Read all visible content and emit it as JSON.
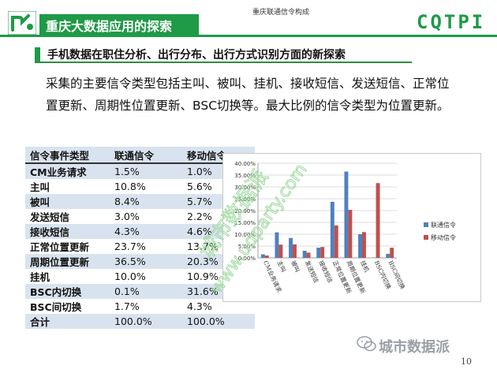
{
  "header": {
    "title": "重庆大数据应用的探索",
    "caption": "重庆联通信令构成",
    "brand": "CQTPI",
    "colors": {
      "accent": "#1f9a47"
    }
  },
  "subtitle": "手机数据在职住分析、出行分布、出行方式识别方面的新探索",
  "paragraph": "采集的主要信令类型包括主叫、被叫、挂机、接收短信、发送短信、正常位置更新、周期性位置更新、BSC切换等。最大比例的信令类型为位置更新。",
  "table": {
    "headers": [
      "信令事件类型",
      "联通信令",
      "移动信令"
    ],
    "rows": [
      [
        "CM业务请求",
        "1.5%",
        "1.0%"
      ],
      [
        "主叫",
        "10.8%",
        "5.6%"
      ],
      [
        "被叫",
        "8.4%",
        "5.7%"
      ],
      [
        "发送短信",
        "3.0%",
        "2.2%"
      ],
      [
        "接收短信",
        "4.3%",
        "4.6%"
      ],
      [
        "正常位置更新",
        "23.7%",
        "13.7%"
      ],
      [
        "周期位置更新",
        "36.5%",
        "20.3%"
      ],
      [
        "挂机",
        "10.0%",
        "10.9%"
      ],
      [
        "BSC内切换",
        "0.1%",
        "31.6%"
      ],
      [
        "BSC间切换",
        "1.7%",
        "4.3%"
      ],
      [
        "合计",
        "100.0%",
        "100.0%"
      ]
    ]
  },
  "chart_data": {
    "type": "bar",
    "categories": [
      "CM业务请求",
      "主叫",
      "被叫",
      "发送短信",
      "接收短信",
      "正常位置更新",
      "周期位置更新",
      "挂机",
      "BSC内切换",
      "BSC间切换"
    ],
    "series": [
      {
        "name": "联通信令",
        "values": [
          1.5,
          10.8,
          8.4,
          3.0,
          4.3,
          23.7,
          36.5,
          10.0,
          0.1,
          1.7
        ],
        "color": "#4f81bd"
      },
      {
        "name": "移动信令",
        "values": [
          1.0,
          5.6,
          5.7,
          2.2,
          4.6,
          13.7,
          20.3,
          10.9,
          31.6,
          4.3
        ],
        "color": "#c0504d"
      }
    ],
    "ylim": [
      0,
      40
    ],
    "yticks": [
      "0.00%",
      "5.00%",
      "10.00%",
      "15.00%",
      "20.00%",
      "25.00%",
      "30.00%",
      "35.00%",
      "40.00%"
    ],
    "grid": true,
    "legend_position": "right"
  },
  "watermark": {
    "text1": "城市数据派",
    "text2": "www.udparty.com"
  },
  "footer": {
    "brand": "城市数据派",
    "page_number": "10"
  }
}
